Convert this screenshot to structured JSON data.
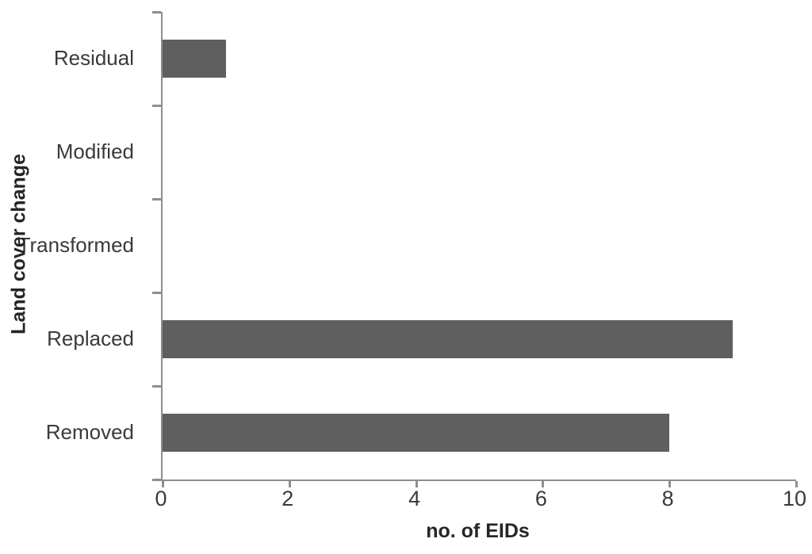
{
  "chart_data": {
    "type": "bar",
    "orientation": "horizontal",
    "title": "",
    "categories": [
      "Residual",
      "Modified",
      "Transformed",
      "Replaced",
      "Removed"
    ],
    "values": [
      1,
      0,
      0,
      9,
      8
    ],
    "xlabel": "no. of EIDs",
    "ylabel": "Land cover change",
    "xlim": [
      0,
      10
    ],
    "xticks": [
      0,
      2,
      4,
      6,
      8,
      10
    ],
    "grid": false,
    "legend": false,
    "bar_color": "#5f5f5f",
    "axis_color": "#8e8e8e",
    "text_color": "#3a3a3a"
  }
}
